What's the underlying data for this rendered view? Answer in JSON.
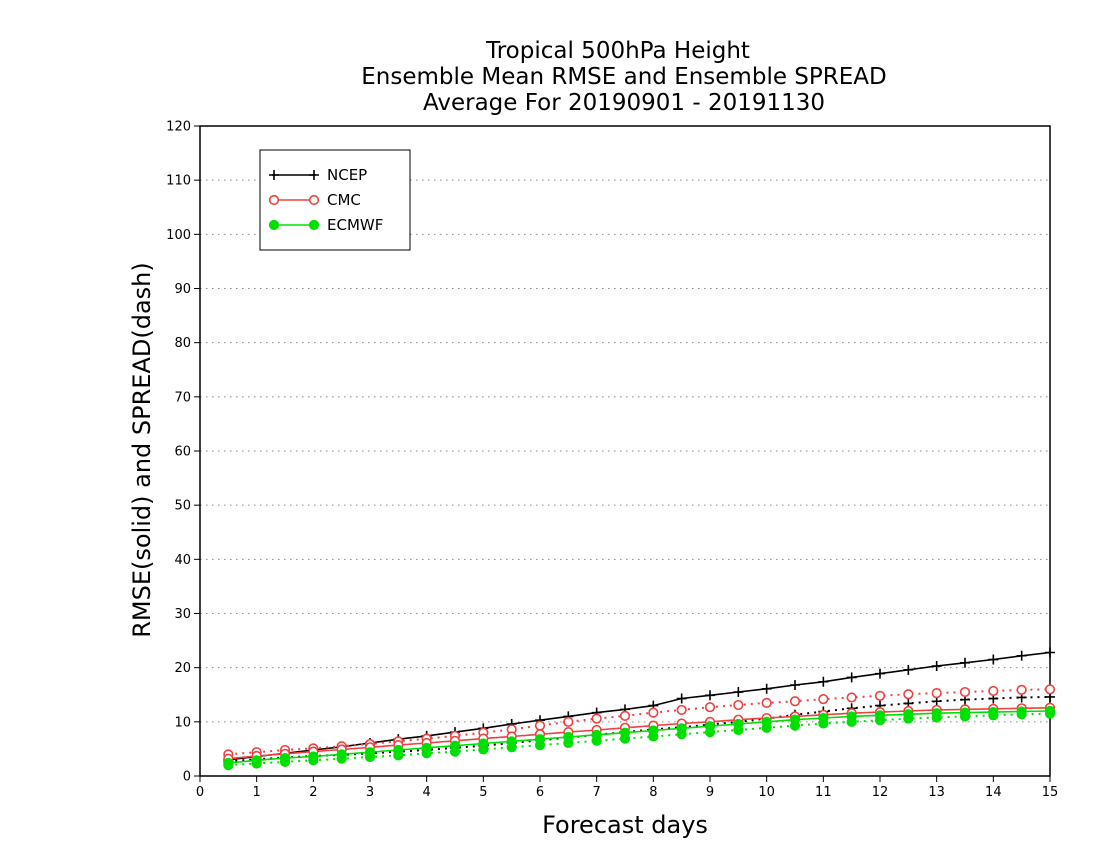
{
  "chart_data": {
    "type": "line",
    "title": [
      "Tropical 500hPa Height",
      "Ensemble Mean RMSE and Ensemble SPREAD",
      "Average For 20190901 - 20191130"
    ],
    "xlabel": "Forecast days",
    "ylabel": "RMSE(solid) and SPREAD(dash)",
    "xlim": [
      0,
      15
    ],
    "ylim": [
      0,
      120
    ],
    "xticks": [
      0,
      1,
      2,
      3,
      4,
      5,
      6,
      7,
      8,
      9,
      10,
      11,
      12,
      13,
      14,
      15
    ],
    "yticks": [
      0,
      10,
      20,
      30,
      40,
      50,
      60,
      70,
      80,
      90,
      100,
      110,
      120
    ],
    "grid": "horizontal dotted",
    "legend_position": "top-left",
    "x": [
      0.5,
      1,
      1.5,
      2,
      2.5,
      3,
      3.5,
      4,
      4.5,
      5,
      5.5,
      6,
      6.5,
      7,
      7.5,
      8,
      8.5,
      9,
      9.5,
      10,
      10.5,
      11,
      11.5,
      12,
      12.5,
      13,
      13.5,
      14,
      14.5,
      15
    ],
    "series": [
      {
        "name": "NCEP",
        "color": "#000000",
        "marker": "plus",
        "rmse": [
          3.0,
          3.6,
          4.2,
          4.8,
          5.4,
          6.1,
          6.8,
          7.4,
          8.1,
          8.8,
          9.6,
          10.3,
          11.0,
          11.7,
          12.3,
          13.0,
          14.3,
          14.9,
          15.5,
          16.1,
          16.8,
          17.4,
          18.2,
          18.9,
          19.6,
          20.3,
          20.9,
          21.5,
          22.2,
          22.8
        ],
        "spread": [
          2.7,
          3.1,
          3.4,
          3.7,
          3.9,
          4.2,
          4.5,
          4.8,
          5.2,
          5.6,
          6.1,
          6.6,
          7.1,
          7.6,
          8.1,
          8.6,
          9.0,
          9.5,
          10.0,
          10.6,
          11.3,
          11.9,
          12.5,
          13.0,
          13.4,
          13.8,
          14.1,
          14.3,
          14.5,
          14.6
        ]
      },
      {
        "name": "CMC",
        "color": "#f04040",
        "marker": "open-circle",
        "rmse": [
          3.2,
          3.7,
          4.1,
          4.5,
          4.9,
          5.3,
          5.7,
          6.1,
          6.5,
          6.9,
          7.3,
          7.7,
          8.1,
          8.5,
          8.9,
          9.3,
          9.7,
          10.0,
          10.4,
          10.7,
          11.0,
          11.3,
          11.6,
          11.8,
          12.0,
          12.2,
          12.3,
          12.4,
          12.5,
          12.6
        ],
        "spread": [
          4.0,
          4.4,
          4.8,
          5.1,
          5.5,
          5.9,
          6.4,
          6.9,
          7.4,
          8.0,
          8.6,
          9.3,
          10.0,
          10.6,
          11.1,
          11.7,
          12.2,
          12.7,
          13.1,
          13.5,
          13.8,
          14.2,
          14.5,
          14.8,
          15.1,
          15.3,
          15.5,
          15.7,
          15.9,
          16.0
        ]
      },
      {
        "name": "ECMWF",
        "color": "#00e000",
        "marker": "filled-circle",
        "rmse": [
          2.4,
          2.9,
          3.3,
          3.6,
          4.0,
          4.4,
          4.8,
          5.2,
          5.6,
          6.0,
          6.4,
          6.8,
          7.2,
          7.6,
          8.0,
          8.4,
          8.8,
          9.2,
          9.6,
          10.0,
          10.4,
          10.7,
          11.0,
          11.2,
          11.4,
          11.6,
          11.7,
          11.8,
          11.9,
          12.0
        ],
        "spread": [
          2.0,
          2.3,
          2.6,
          2.9,
          3.2,
          3.5,
          3.8,
          4.2,
          4.5,
          4.9,
          5.3,
          5.7,
          6.1,
          6.5,
          6.9,
          7.3,
          7.7,
          8.1,
          8.5,
          8.9,
          9.3,
          9.7,
          10.0,
          10.3,
          10.6,
          10.8,
          11.0,
          11.2,
          11.4,
          11.5
        ]
      }
    ]
  }
}
